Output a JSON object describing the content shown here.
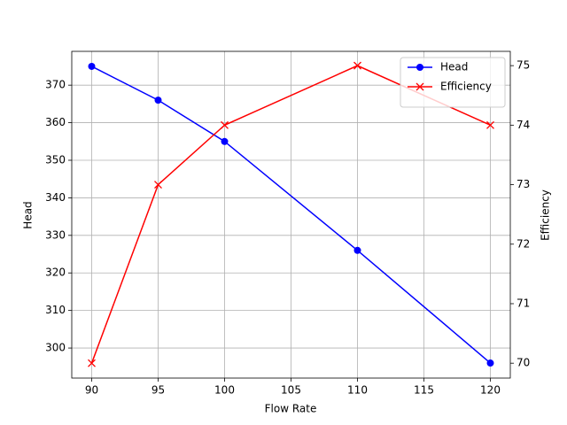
{
  "chart_data": {
    "type": "line",
    "x": [
      90,
      95,
      100,
      110,
      120
    ],
    "xlabel": "Flow Rate",
    "ylabel": "Head",
    "y2label": "Efficiency",
    "series": [
      {
        "name": "Head",
        "color": "#0000ff",
        "marker": "circle",
        "values": [
          375,
          366,
          355,
          326,
          296
        ]
      },
      {
        "name": "Efficiency",
        "color": "#ff0000",
        "marker": "x",
        "axis": "y2",
        "values": [
          70,
          73,
          74,
          75,
          74
        ]
      }
    ],
    "xlim": [
      88.5,
      121.5
    ],
    "xticks": [
      90,
      95,
      100,
      105,
      110,
      115,
      120
    ],
    "ylim": [
      292,
      379
    ],
    "yticks": [
      300,
      310,
      320,
      330,
      340,
      350,
      360,
      370
    ],
    "y2lim": [
      69.75,
      75.24
    ],
    "y2ticks": [
      70,
      71,
      72,
      73,
      74,
      75
    ],
    "grid": true,
    "legend": "upper right"
  }
}
